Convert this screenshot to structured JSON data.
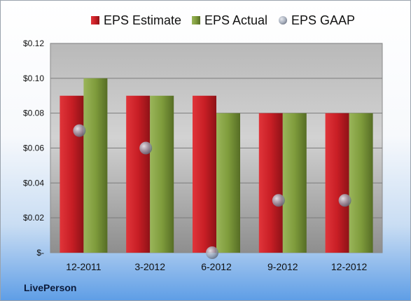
{
  "company": "LivePerson",
  "colors": {
    "estimate": "#c81e25",
    "actual": "#7f9c3c",
    "gaap": "#9aa3b3"
  },
  "chart_data": {
    "type": "bar",
    "categories": [
      "12-2011",
      "3-2012",
      "6-2012",
      "9-2012",
      "12-2012"
    ],
    "series": [
      {
        "name": "EPS Estimate",
        "values": [
          0.09,
          0.09,
          0.09,
          0.08,
          0.08
        ]
      },
      {
        "name": "EPS Actual",
        "values": [
          0.1,
          0.09,
          0.08,
          0.08,
          0.08
        ]
      },
      {
        "name": "EPS GAAP",
        "type": "scatter",
        "values": [
          0.07,
          0.06,
          0.0,
          0.03,
          0.03
        ]
      }
    ],
    "y_ticks": [
      "$-",
      "$0.02",
      "$0.04",
      "$0.06",
      "$0.08",
      "$0.10",
      "$0.12"
    ],
    "ylim": [
      0,
      0.12
    ],
    "grid": true,
    "legend_position": "top"
  }
}
